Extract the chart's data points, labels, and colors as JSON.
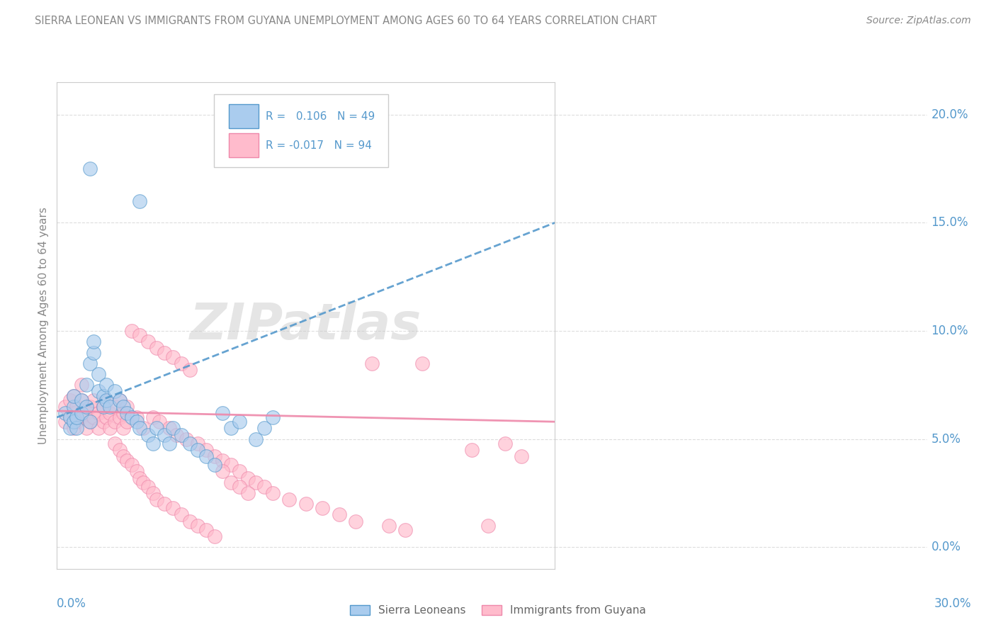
{
  "title": "SIERRA LEONEAN VS IMMIGRANTS FROM GUYANA UNEMPLOYMENT AMONG AGES 60 TO 64 YEARS CORRELATION CHART",
  "source": "Source: ZipAtlas.com",
  "ylabel": "Unemployment Among Ages 60 to 64 years",
  "legend_label_blue": "Sierra Leoneans",
  "legend_label_pink": "Immigrants from Guyana",
  "R_blue": 0.106,
  "N_blue": 49,
  "R_pink": -0.017,
  "N_pink": 94,
  "blue_fill": "#aaccee",
  "pink_fill": "#ffbbcc",
  "blue_edge": "#5599cc",
  "pink_edge": "#ee88aa",
  "blue_line": "#5599cc",
  "pink_line": "#ee88aa",
  "xlim": [
    0.0,
    0.3
  ],
  "ylim": [
    -0.01,
    0.215
  ],
  "yticks": [
    0.0,
    0.05,
    0.1,
    0.15,
    0.2
  ],
  "watermark": "ZIPatlas",
  "title_color": "#888888",
  "source_color": "#888888",
  "ylabel_color": "#888888",
  "tick_color": "#5599cc",
  "grid_color": "#dddddd",
  "blue_x": [
    0.005,
    0.008,
    0.008,
    0.01,
    0.01,
    0.01,
    0.012,
    0.012,
    0.015,
    0.015,
    0.018,
    0.018,
    0.02,
    0.02,
    0.022,
    0.022,
    0.025,
    0.025,
    0.028,
    0.028,
    0.03,
    0.03,
    0.032,
    0.035,
    0.038,
    0.04,
    0.042,
    0.045,
    0.048,
    0.05,
    0.055,
    0.058,
    0.06,
    0.065,
    0.068,
    0.07,
    0.075,
    0.08,
    0.085,
    0.09,
    0.095,
    0.1,
    0.105,
    0.11,
    0.12,
    0.125,
    0.13,
    0.02,
    0.05
  ],
  "blue_y": [
    0.062,
    0.055,
    0.06,
    0.058,
    0.065,
    0.07,
    0.055,
    0.06,
    0.062,
    0.068,
    0.065,
    0.075,
    0.058,
    0.085,
    0.09,
    0.095,
    0.072,
    0.08,
    0.065,
    0.07,
    0.068,
    0.075,
    0.065,
    0.072,
    0.068,
    0.065,
    0.062,
    0.06,
    0.058,
    0.055,
    0.052,
    0.048,
    0.055,
    0.052,
    0.048,
    0.055,
    0.052,
    0.048,
    0.045,
    0.042,
    0.038,
    0.062,
    0.055,
    0.058,
    0.05,
    0.055,
    0.06,
    0.175,
    0.16
  ],
  "pink_x": [
    0.005,
    0.005,
    0.008,
    0.008,
    0.01,
    0.01,
    0.01,
    0.012,
    0.012,
    0.015,
    0.015,
    0.015,
    0.018,
    0.018,
    0.02,
    0.02,
    0.022,
    0.022,
    0.025,
    0.025,
    0.028,
    0.028,
    0.03,
    0.03,
    0.032,
    0.032,
    0.035,
    0.035,
    0.038,
    0.038,
    0.04,
    0.04,
    0.042,
    0.042,
    0.045,
    0.048,
    0.05,
    0.052,
    0.055,
    0.058,
    0.06,
    0.062,
    0.065,
    0.068,
    0.07,
    0.072,
    0.075,
    0.078,
    0.08,
    0.085,
    0.09,
    0.095,
    0.1,
    0.105,
    0.11,
    0.115,
    0.12,
    0.125,
    0.13,
    0.14,
    0.15,
    0.16,
    0.17,
    0.18,
    0.19,
    0.2,
    0.21,
    0.22,
    0.25,
    0.26,
    0.035,
    0.038,
    0.04,
    0.042,
    0.045,
    0.048,
    0.05,
    0.052,
    0.055,
    0.058,
    0.06,
    0.065,
    0.07,
    0.075,
    0.08,
    0.085,
    0.09,
    0.095,
    0.1,
    0.105,
    0.11,
    0.115,
    0.27,
    0.28
  ],
  "pink_y": [
    0.058,
    0.065,
    0.06,
    0.068,
    0.055,
    0.062,
    0.07,
    0.058,
    0.065,
    0.06,
    0.068,
    0.075,
    0.055,
    0.062,
    0.058,
    0.065,
    0.06,
    0.068,
    0.055,
    0.062,
    0.058,
    0.065,
    0.06,
    0.068,
    0.055,
    0.062,
    0.058,
    0.065,
    0.06,
    0.068,
    0.055,
    0.062,
    0.058,
    0.065,
    0.1,
    0.06,
    0.098,
    0.055,
    0.095,
    0.06,
    0.092,
    0.058,
    0.09,
    0.055,
    0.088,
    0.052,
    0.085,
    0.05,
    0.082,
    0.048,
    0.045,
    0.042,
    0.04,
    0.038,
    0.035,
    0.032,
    0.03,
    0.028,
    0.025,
    0.022,
    0.02,
    0.018,
    0.015,
    0.012,
    0.085,
    0.01,
    0.008,
    0.085,
    0.045,
    0.01,
    0.048,
    0.045,
    0.042,
    0.04,
    0.038,
    0.035,
    0.032,
    0.03,
    0.028,
    0.025,
    0.022,
    0.02,
    0.018,
    0.015,
    0.012,
    0.01,
    0.008,
    0.005,
    0.035,
    0.03,
    0.028,
    0.025,
    0.048,
    0.042
  ]
}
